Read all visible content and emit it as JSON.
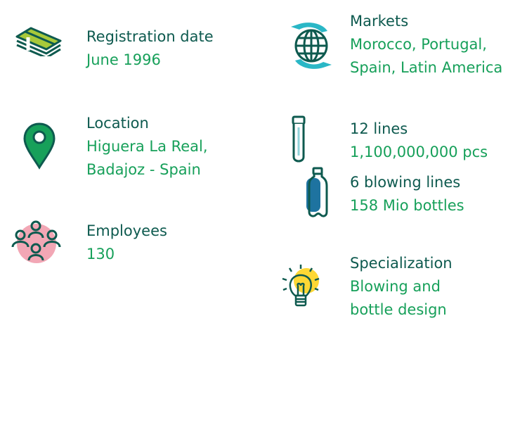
{
  "colors": {
    "dark": "#0e5a4f",
    "green": "#17a05a",
    "lime": "#a8c93a",
    "pink": "#f2a7b5",
    "teal": "#2ab7c6",
    "blue": "#1e73a0",
    "yellow": "#fdd835"
  },
  "items": [
    {
      "icon": "money-stack-icon",
      "title": "Registration date",
      "lines": [
        "June 1996"
      ]
    },
    {
      "icon": "location-pin-icon",
      "title": "Location",
      "lines": [
        "Higuera La Real,",
        "Badajoz - Spain"
      ]
    },
    {
      "icon": "people-group-icon",
      "title": "Employees",
      "lines": [
        "130"
      ]
    },
    {
      "icon": "globe-arrows-icon",
      "title": "Markets",
      "lines": [
        "Morocco, Portugal,",
        "Spain, Latin America"
      ]
    },
    {
      "icon": "preform-icon",
      "title": "12 lines",
      "lines": [
        "1,100,000,000 pcs"
      ]
    },
    {
      "icon": "bottle-icon",
      "title": "6 blowing lines",
      "lines": [
        "158 Mio bottles"
      ]
    },
    {
      "icon": "lightbulb-icon",
      "title": "Specialization",
      "lines": [
        "Blowing and",
        "bottle design"
      ]
    }
  ]
}
